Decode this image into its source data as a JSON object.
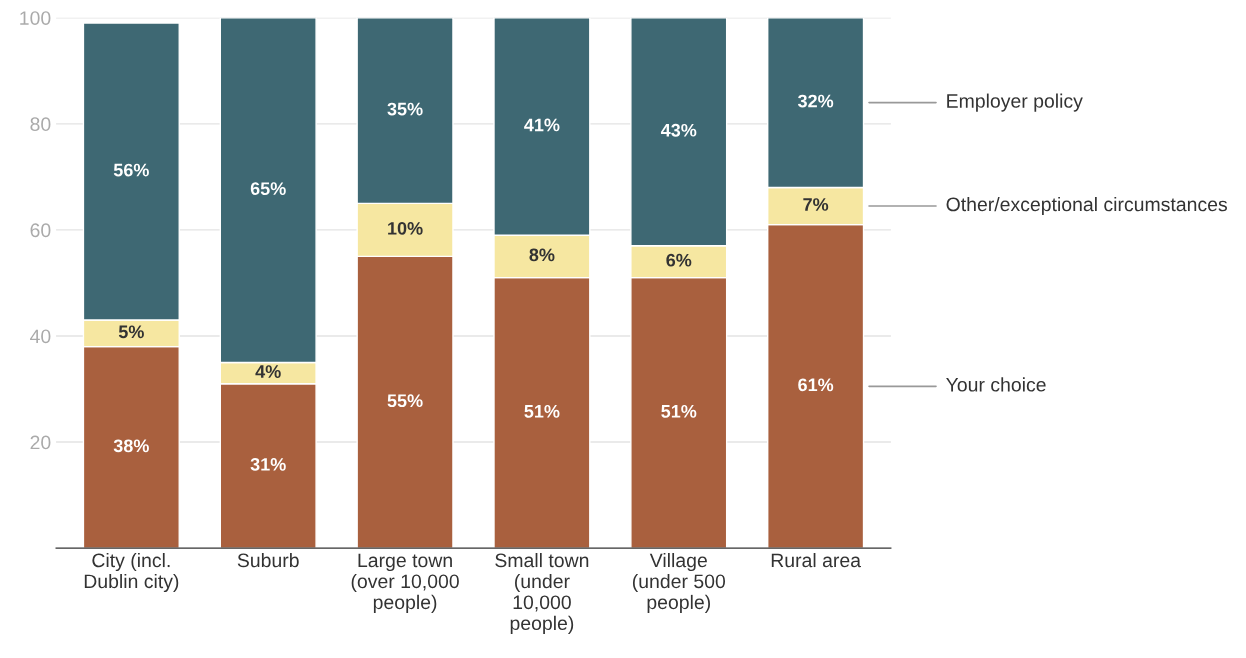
{
  "chart_data": {
    "type": "bar",
    "stacked": true,
    "categories": [
      "City (incl.\nDublin city)",
      "Suburb",
      "Large town\n(over 10,000\npeople)",
      "Small town\n(under\n10,000\npeople)",
      "Village\n(under 500\npeople)",
      "Rural area"
    ],
    "series": [
      {
        "name": "Your choice",
        "color": "#a9603e",
        "values": [
          38,
          31,
          55,
          51,
          51,
          61
        ],
        "value_labels": [
          "38%",
          "31%",
          "55%",
          "51%",
          "51%",
          "61%"
        ]
      },
      {
        "name": "Other/exceptional circumstances",
        "color": "#f6e7a1",
        "values": [
          5,
          4,
          10,
          8,
          6,
          7
        ],
        "value_labels": [
          "5%",
          "4%",
          "10%",
          "8%",
          "6%",
          "7%"
        ]
      },
      {
        "name": "Employer policy",
        "color": "#3e6873",
        "values": [
          56,
          65,
          35,
          41,
          43,
          32
        ],
        "value_labels": [
          "56%",
          "65%",
          "35%",
          "41%",
          "43%",
          "32%"
        ]
      }
    ],
    "ylim": [
      0,
      100
    ],
    "yticks": [
      20,
      40,
      60,
      80,
      100
    ],
    "grid": "y",
    "legend": "right"
  }
}
